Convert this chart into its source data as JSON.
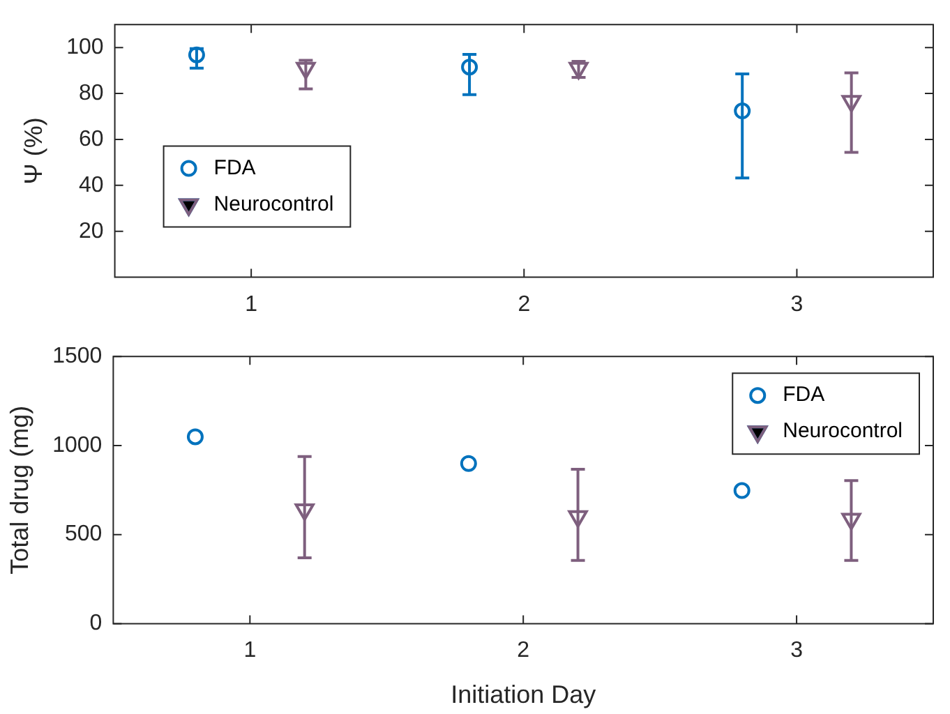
{
  "chart_data": [
    {
      "type": "scatter",
      "ylabel": "Ψ (%)",
      "xlim": [
        0.5,
        3.5
      ],
      "xticks": [
        1,
        2,
        3
      ],
      "ylim": [
        0,
        110
      ],
      "yticks": [
        20,
        40,
        60,
        80,
        100
      ],
      "grid": false,
      "legend": "bottom left",
      "series": [
        {
          "name": "FDA",
          "color": "#0072bd",
          "marker": "circle",
          "x": [
            0.8,
            1.8,
            2.8
          ],
          "values": [
            96.8,
            91.5,
            72.4
          ],
          "errors": [
            [
              91,
              99.5
            ],
            [
              79.5,
              97
            ],
            [
              43.2,
              88.5
            ]
          ]
        },
        {
          "name": "Neurocontrol",
          "color": "#7e5f7e",
          "marker": "triangle",
          "x": [
            1.2,
            2.2,
            3.2
          ],
          "values": [
            91,
            91,
            76.6
          ],
          "errors": [
            [
              82,
              94.4
            ],
            [
              87,
              94
            ],
            [
              54.4,
              89
            ]
          ]
        }
      ]
    },
    {
      "type": "scatter",
      "xlabel": "Initiation Day",
      "ylabel": "Total drug (mg)",
      "xlim": [
        0.5,
        3.5
      ],
      "xticks": [
        1,
        2,
        3
      ],
      "ylim": [
        0,
        1500
      ],
      "yticks": [
        0,
        500,
        1000,
        1500
      ],
      "grid": false,
      "legend": "top right",
      "series": [
        {
          "name": "FDA",
          "color": "#0072bd",
          "marker": "circle",
          "x": [
            0.8,
            1.8,
            2.8
          ],
          "values": [
            1049,
            899,
            747
          ]
        },
        {
          "name": "Neurocontrol",
          "color": "#7e5f7e",
          "marker": "triangle",
          "x": [
            1.2,
            2.2,
            3.2
          ],
          "values": [
            640,
            601,
            587
          ],
          "errors": [
            [
              370,
              938
            ],
            [
              355,
              867
            ],
            [
              355,
              803
            ]
          ]
        }
      ]
    }
  ]
}
